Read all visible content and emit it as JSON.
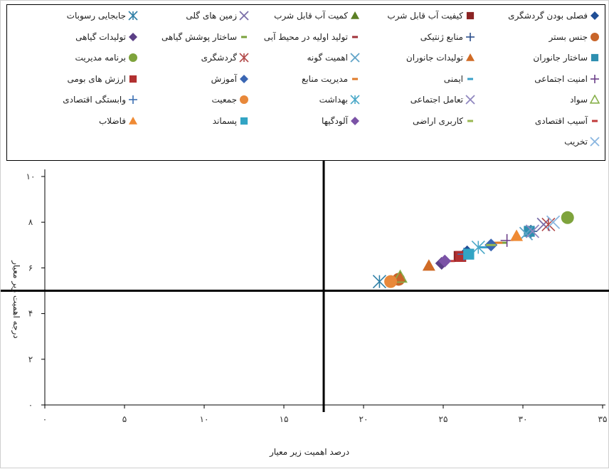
{
  "chart_data": {
    "type": "scatter",
    "title": "",
    "xlabel": "درصد اهمیت زیر معیار",
    "ylabel": "درجه اهمیت زیر معیار",
    "xlim": [
      0,
      35
    ],
    "ylim": [
      0,
      10
    ],
    "x_ticks": [
      0,
      5,
      10,
      15,
      20,
      25,
      30,
      35
    ],
    "y_ticks": [
      0,
      2,
      4,
      6,
      8,
      10
    ],
    "x_tick_labels": [
      "۰",
      "۵",
      "۱۰",
      "۱۵",
      "۲۰",
      "۲۵",
      "۳۰",
      "۳۵"
    ],
    "y_tick_labels": [
      "۰",
      "۲",
      "۴",
      "۶",
      "۸",
      "۱۰"
    ],
    "reference_lines": {
      "x": 17.5,
      "y": 5
    },
    "legend_position": "top",
    "grid": false,
    "series": [
      {
        "name": "فصلی بودن گردشگری",
        "marker": "diamond",
        "color": "#1f4e96",
        "x": 26.5,
        "y": 6.7
      },
      {
        "name": "کیفیت آب قابل شرب",
        "marker": "square",
        "color": "#8b2323",
        "x": 26.0,
        "y": 6.5
      },
      {
        "name": "کمیت آب قابل شرب",
        "marker": "triangle",
        "color": "#5b7f24",
        "x": 22.3,
        "y": 5.6
      },
      {
        "name": "زمین های گلی",
        "marker": "x",
        "color": "#7a6ea8",
        "x": 31.3,
        "y": 7.9
      },
      {
        "name": "جابجایی رسوبات",
        "marker": "asterisk",
        "color": "#2f7fa6",
        "x": 21.0,
        "y": 5.4
      },
      {
        "name": "جنس بستر",
        "marker": "circle",
        "color": "#c8652a",
        "x": 22.2,
        "y": 5.5
      },
      {
        "name": "منابع ژنتیکی",
        "marker": "plus",
        "color": "#2c4f8c",
        "x": 30.5,
        "y": 7.6
      },
      {
        "name": "تولید اولیه در محیط آبی",
        "marker": "dash",
        "color": "#a0323a",
        "x": 26.2,
        "y": 6.5
      },
      {
        "name": "ساختار پوشش گیاهی",
        "marker": "dash",
        "color": "#7aa23c",
        "x": 28.7,
        "y": 7.1
      },
      {
        "name": "تولیدات گیاهی",
        "marker": "diamond",
        "color": "#5b3f86",
        "x": 24.9,
        "y": 6.2
      },
      {
        "name": "ساختار جانوران",
        "marker": "square",
        "color": "#2e8fb0",
        "x": 30.4,
        "y": 7.6
      },
      {
        "name": "تولیدات جانوران",
        "marker": "triangle",
        "color": "#d06b26",
        "x": 24.1,
        "y": 6.1
      },
      {
        "name": "اهمیت گونه",
        "marker": "x",
        "color": "#5fa3c7",
        "x": 30.2,
        "y": 7.5
      },
      {
        "name": "گردشگری",
        "marker": "asterisk",
        "color": "#b24a4a",
        "x": 31.6,
        "y": 7.9
      },
      {
        "name": "برنامه مدیریت",
        "marker": "circle",
        "color": "#7ea33c",
        "x": 32.8,
        "y": 8.2
      },
      {
        "name": "امنیت اجتماعی",
        "marker": "plus",
        "color": "#6b3f88",
        "x": 29.0,
        "y": 7.2
      },
      {
        "name": "ایمنی",
        "marker": "dash",
        "color": "#3aa0c8",
        "x": 27.5,
        "y": 6.9
      },
      {
        "name": "مدیریت منابع",
        "marker": "dash",
        "color": "#e07b2a",
        "x": 28.4,
        "y": 7.1
      },
      {
        "name": "آموزش",
        "marker": "diamond",
        "color": "#3a66b3",
        "x": 28.0,
        "y": 7.0
      },
      {
        "name": "ارزش های بومی",
        "marker": "square",
        "color": "#b23030",
        "x": 26.1,
        "y": 6.5
      },
      {
        "name": "سواد",
        "marker": "triangle-open",
        "color": "#88b04b",
        "x": 22.3,
        "y": 5.6
      },
      {
        "name": "تعامل اجتماعی",
        "marker": "x",
        "color": "#8f86bf",
        "x": 30.6,
        "y": 7.6
      },
      {
        "name": "بهداشت",
        "marker": "asterisk",
        "color": "#4aa8c8",
        "x": 27.2,
        "y": 6.9
      },
      {
        "name": "جمعیت",
        "marker": "circle",
        "color": "#e8883a",
        "x": 21.7,
        "y": 5.4
      },
      {
        "name": "وابستگی اقتصادی",
        "marker": "plus",
        "color": "#3c6fb3",
        "x": 26.3,
        "y": 6.6
      },
      {
        "name": "آسیب اقتصادی",
        "marker": "dash",
        "color": "#c0393b",
        "x": 25.4,
        "y": 6.3
      },
      {
        "name": "کاربری اراضی",
        "marker": "dash",
        "color": "#9ab852",
        "x": 28.0,
        "y": 7.0
      },
      {
        "name": "آلودگیها",
        "marker": "diamond",
        "color": "#7b52a6",
        "x": 25.1,
        "y": 6.3
      },
      {
        "name": "پسماند",
        "marker": "square",
        "color": "#32a4c4",
        "x": 26.6,
        "y": 6.6
      },
      {
        "name": "فاضلاب",
        "marker": "triangle",
        "color": "#ef8a34",
        "x": 29.6,
        "y": 7.4
      },
      {
        "name": "تخریب",
        "marker": "x",
        "color": "#8ab6e0",
        "x": 31.9,
        "y": 8.0
      }
    ]
  }
}
